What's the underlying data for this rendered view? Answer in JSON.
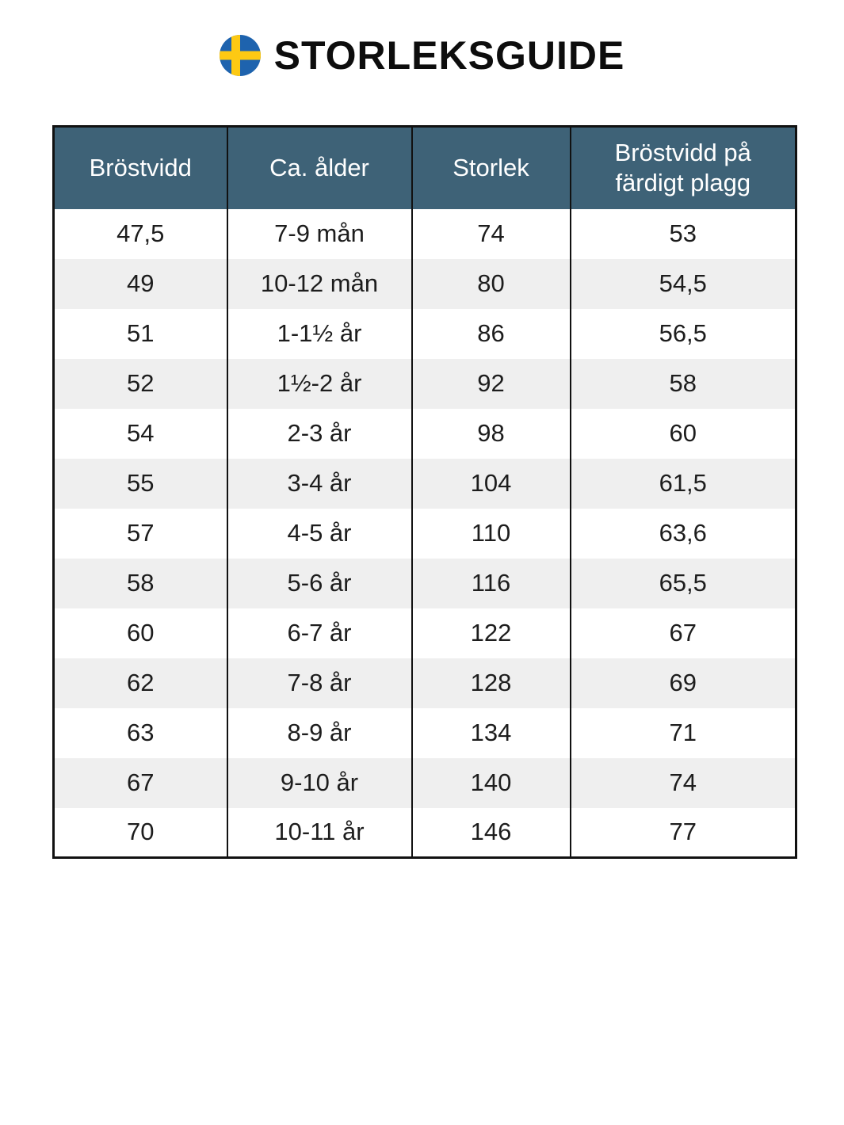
{
  "title": "STORLEKSGUIDE",
  "flag_icon": "swedish-flag-icon",
  "colors": {
    "header_bg": "#3e6277",
    "header_text": "#ffffff",
    "stripe": "#efefef",
    "border": "#111111",
    "body_text": "#1d1d1d",
    "title_color": "#0d0d0d",
    "flag_blue": "#1e63ae",
    "flag_yellow": "#fdc913"
  },
  "table": {
    "headers": [
      "Bröstvidd",
      "Ca. ålder",
      "Storlek",
      "Bröstvidd på färdigt plagg"
    ],
    "rows": [
      [
        "47,5",
        "7-9 mån",
        "74",
        "53"
      ],
      [
        "49",
        "10-12 mån",
        "80",
        "54,5"
      ],
      [
        "51",
        "1-1½ år",
        "86",
        "56,5"
      ],
      [
        "52",
        "1½-2 år",
        "92",
        "58"
      ],
      [
        "54",
        "2-3 år",
        "98",
        "60"
      ],
      [
        "55",
        "3-4 år",
        "104",
        "61,5"
      ],
      [
        "57",
        "4-5 år",
        "110",
        "63,6"
      ],
      [
        "58",
        "5-6 år",
        "116",
        "65,5"
      ],
      [
        "60",
        "6-7 år",
        "122",
        "67"
      ],
      [
        "62",
        "7-8 år",
        "128",
        "69"
      ],
      [
        "63",
        "8-9 år",
        "134",
        "71"
      ],
      [
        "67",
        "9-10 år",
        "140",
        "74"
      ],
      [
        "70",
        "10-11 år",
        "146",
        "77"
      ]
    ]
  }
}
